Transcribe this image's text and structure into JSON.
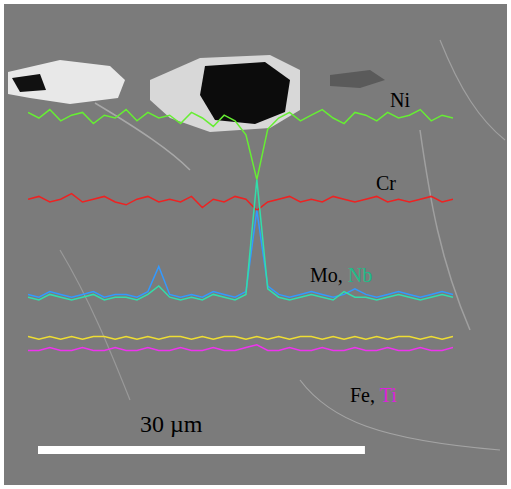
{
  "chart_data": {
    "type": "line",
    "tick_labels": false,
    "xlim": [
      0,
      39
    ],
    "ylim": [
      0,
      100
    ],
    "x": [
      0,
      1,
      2,
      3,
      4,
      5,
      6,
      7,
      8,
      9,
      10,
      11,
      12,
      13,
      14,
      15,
      16,
      17,
      18,
      19,
      20,
      21,
      22,
      23,
      24,
      25,
      26,
      27,
      28,
      29,
      30,
      31,
      32,
      33,
      34,
      35,
      36,
      37,
      38,
      39
    ],
    "series": [
      {
        "name": "Ni",
        "color": "#66ee33",
        "values": [
          92,
          90,
          93,
          89,
          91,
          92,
          88,
          91,
          90,
          93,
          89,
          92,
          90,
          91,
          88,
          92,
          90,
          87,
          91,
          89,
          84,
          68,
          86,
          90,
          92,
          89,
          91,
          93,
          90,
          88,
          92,
          91,
          89,
          92,
          90,
          91,
          93,
          89,
          91,
          90
        ]
      },
      {
        "name": "Cr",
        "color": "#ee2222",
        "values": [
          61,
          62,
          60,
          61,
          63,
          60,
          61,
          62,
          60,
          59,
          61,
          62,
          60,
          61,
          60,
          62,
          58,
          61,
          60,
          62,
          61,
          57,
          60,
          61,
          62,
          60,
          61,
          60,
          62,
          61,
          60,
          61,
          62,
          60,
          61,
          60,
          61,
          62,
          60,
          61
        ]
      },
      {
        "name": "Mo",
        "color": "#3399ff",
        "values": [
          27,
          26,
          28,
          27,
          26,
          27,
          28,
          26,
          27,
          27,
          26,
          28,
          37,
          27,
          26,
          27,
          26,
          28,
          27,
          26,
          28,
          57,
          30,
          27,
          26,
          27,
          28,
          27,
          26,
          27,
          29,
          27,
          26,
          27,
          28,
          27,
          26,
          27,
          28,
          27
        ]
      },
      {
        "name": "Nb",
        "color": "#33ddaa",
        "values": [
          26,
          25,
          27,
          26,
          25,
          26,
          27,
          25,
          26,
          26,
          25,
          27,
          30,
          26,
          25,
          26,
          25,
          27,
          26,
          25,
          27,
          68,
          29,
          26,
          25,
          26,
          27,
          26,
          25,
          28,
          26,
          26,
          25,
          26,
          27,
          26,
          25,
          26,
          27,
          26
        ]
      },
      {
        "name": "Fe",
        "color": "#eedd33",
        "values": [
          12,
          11,
          12,
          11,
          12,
          11,
          12,
          12,
          11,
          12,
          11,
          12,
          11,
          12,
          12,
          11,
          12,
          11,
          12,
          12,
          11,
          12,
          11,
          12,
          11,
          12,
          12,
          11,
          12,
          11,
          12,
          11,
          12,
          11,
          12,
          12,
          11,
          12,
          11,
          12
        ]
      },
      {
        "name": "Ti",
        "color": "#ee33ee",
        "values": [
          7,
          7,
          8,
          7,
          7,
          8,
          7,
          7,
          8,
          7,
          7,
          8,
          7,
          7,
          8,
          7,
          7,
          8,
          7,
          7,
          8,
          9,
          7,
          7,
          8,
          7,
          7,
          8,
          7,
          7,
          8,
          7,
          7,
          8,
          7,
          7,
          8,
          7,
          7,
          8
        ]
      }
    ],
    "labels": [
      [
        {
          "text": "Ni",
          "color": "#000000"
        }
      ],
      [
        {
          "text": "Cr",
          "color": "#000000"
        }
      ],
      [
        {
          "text": "Mo, ",
          "color": "#000000"
        },
        {
          "text": "Nb",
          "color": "#22bb88"
        }
      ],
      [
        {
          "text": "Fe, ",
          "color": "#000000"
        },
        {
          "text": "Ti",
          "color": "#dd22dd"
        }
      ]
    ],
    "scale_bar": {
      "length": 30,
      "label": "30 µm"
    }
  }
}
